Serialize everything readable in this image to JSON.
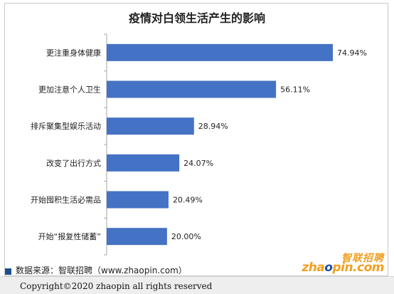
{
  "chart_data": {
    "type": "bar",
    "orientation": "horizontal",
    "title": "疫情对白领生活产生的影响",
    "categories": [
      "更注重身体健康",
      "更加注意个人卫生",
      "排斥聚集型娱乐活动",
      "改变了出行方式",
      "开始囤积生活必需品",
      "开始“报复性储蓄”"
    ],
    "values": [
      74.94,
      56.11,
      28.94,
      24.07,
      20.49,
      20.0
    ],
    "value_labels": [
      "74.94%",
      "56.11%",
      "28.94%",
      "24.07%",
      "20.49%",
      "20.00%"
    ],
    "xlim": [
      0,
      80
    ],
    "grid": false,
    "bar_color": "#4472c4"
  },
  "source": "数据来源：智联招聘（www.zhaopin.com）",
  "logo": {
    "cn": "智联招聘",
    "en_before": "zha",
    "en_o": "o",
    "en_after": "pin.com"
  },
  "footer": {
    "copyright": "Copyright©2020 zhaopin all rights reserved"
  }
}
